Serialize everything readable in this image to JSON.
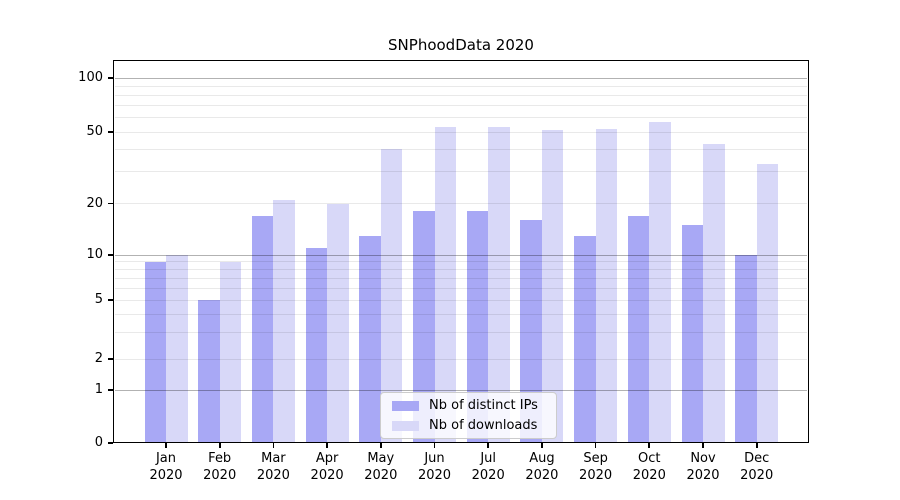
{
  "title": "SNPhoodData 2020",
  "chart_data": {
    "type": "bar",
    "title": "SNPhoodData 2020",
    "categories": [
      "Jan",
      "Feb",
      "Mar",
      "Apr",
      "May",
      "Jun",
      "Jul",
      "Aug",
      "Sep",
      "Oct",
      "Nov",
      "Dec"
    ],
    "category_year": "2020",
    "series": [
      {
        "name": "Nb of distinct IPs",
        "color": "#a8a8f5",
        "values": [
          9,
          5,
          17,
          11,
          13,
          18,
          18,
          16,
          13,
          17,
          15,
          10
        ]
      },
      {
        "name": "Nb of downloads",
        "color": "#d8d8f8",
        "values": [
          10,
          9,
          21,
          20,
          40,
          53,
          53,
          51,
          52,
          57,
          43,
          33
        ]
      }
    ],
    "yscale": "symlog",
    "ylim": [
      0,
      126
    ],
    "yticks": [
      100,
      50,
      20,
      10,
      5,
      2,
      1,
      0
    ],
    "grid_major": [
      1,
      10,
      100
    ],
    "grid_minor": [
      2,
      3,
      4,
      5,
      6,
      7,
      8,
      9,
      20,
      30,
      40,
      50,
      60,
      70,
      80,
      90
    ],
    "grid": true,
    "legend_position": "lower center"
  }
}
